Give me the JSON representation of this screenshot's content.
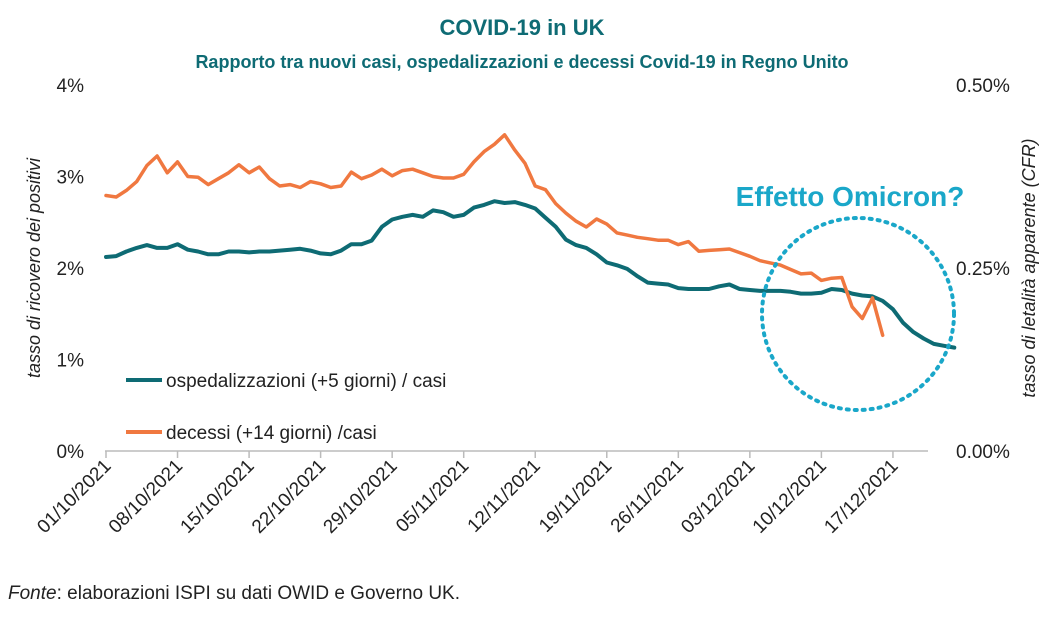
{
  "chart_data": {
    "type": "line",
    "title": "COVID-19 in UK",
    "subtitle": "Rapporto tra nuovi casi, ospedalizzazioni e decessi Covid-19 in Regno Unito",
    "ylabel_left": "tasso di ricovero dei positivi",
    "ylabel_right": "tasso di letalità apparente (CFR)",
    "y_left_ticks": [
      "0%",
      "1%",
      "2%",
      "3%",
      "4%"
    ],
    "y_left_range": [
      0,
      4
    ],
    "y_right_ticks": [
      "0.00%",
      "0.25%",
      "0.50%"
    ],
    "y_right_range": [
      0,
      0.5
    ],
    "x_start": "01/10/2021",
    "x_ticks": [
      {
        "day": 0,
        "label": "01/10/2021"
      },
      {
        "day": 7,
        "label": "08/10/2021"
      },
      {
        "day": 14,
        "label": "15/10/2021"
      },
      {
        "day": 21,
        "label": "22/10/2021"
      },
      {
        "day": 28,
        "label": "29/10/2021"
      },
      {
        "day": 35,
        "label": "05/11/2021"
      },
      {
        "day": 42,
        "label": "12/11/2021"
      },
      {
        "day": 49,
        "label": "19/11/2021"
      },
      {
        "day": 56,
        "label": "26/11/2021"
      },
      {
        "day": 63,
        "label": "03/12/2021"
      },
      {
        "day": 70,
        "label": "10/12/2021"
      },
      {
        "day": 77,
        "label": "17/12/2021"
      }
    ],
    "series": [
      {
        "name": "ospedalizzazioni (+5 giorni) / casi",
        "axis": "left",
        "color": "#0e6b74",
        "values": [
          2.12,
          2.13,
          2.18,
          2.22,
          2.25,
          2.22,
          2.22,
          2.26,
          2.2,
          2.18,
          2.15,
          2.15,
          2.18,
          2.18,
          2.17,
          2.18,
          2.18,
          2.19,
          2.2,
          2.21,
          2.19,
          2.16,
          2.15,
          2.19,
          2.26,
          2.26,
          2.3,
          2.45,
          2.53,
          2.56,
          2.58,
          2.56,
          2.63,
          2.61,
          2.56,
          2.58,
          2.66,
          2.69,
          2.73,
          2.71,
          2.72,
          2.69,
          2.65,
          2.55,
          2.45,
          2.31,
          2.25,
          2.22,
          2.15,
          2.06,
          2.03,
          1.99,
          1.91,
          1.84,
          1.83,
          1.82,
          1.78,
          1.77,
          1.77,
          1.77,
          1.8,
          1.82,
          1.77,
          1.76,
          1.75,
          1.75,
          1.75,
          1.74,
          1.72,
          1.72,
          1.73,
          1.77,
          1.76,
          1.72,
          1.7,
          1.69,
          1.64,
          1.55,
          1.4,
          1.3,
          1.23,
          1.17,
          1.15,
          1.13
        ]
      },
      {
        "name": "decessi (+14 giorni) /casi",
        "axis": "right",
        "color": "#f07840",
        "values": [
          0.349,
          0.347,
          0.356,
          0.368,
          0.39,
          0.403,
          0.38,
          0.395,
          0.375,
          0.374,
          0.364,
          0.372,
          0.38,
          0.391,
          0.38,
          0.388,
          0.372,
          0.362,
          0.364,
          0.36,
          0.368,
          0.365,
          0.36,
          0.362,
          0.381,
          0.372,
          0.377,
          0.385,
          0.376,
          0.383,
          0.385,
          0.38,
          0.375,
          0.373,
          0.373,
          0.378,
          0.395,
          0.409,
          0.419,
          0.432,
          0.411,
          0.393,
          0.362,
          0.357,
          0.338,
          0.325,
          0.314,
          0.306,
          0.317,
          0.31,
          0.298,
          0.295,
          0.292,
          0.29,
          0.288,
          0.288,
          0.282,
          0.286,
          0.273,
          0.274,
          0.275,
          0.276,
          0.271,
          0.266,
          0.26,
          0.257,
          0.254,
          0.248,
          0.242,
          0.243,
          0.233,
          0.236,
          0.237,
          0.197,
          0.181,
          0.209,
          0.158
        ]
      }
    ],
    "annotation": "Effetto Omicron?",
    "grid": false,
    "legend_position": "inside-lower-left"
  },
  "source": {
    "label": "Fonte",
    "text": ": elaborazioni ISPI su dati OWID e Governo UK."
  },
  "colors": {
    "title": "#0e6b74",
    "hospital_line": "#0e6b74",
    "deaths_line": "#f07840",
    "annotation": "#1aa7c9",
    "axis": "#bbbbbb"
  }
}
